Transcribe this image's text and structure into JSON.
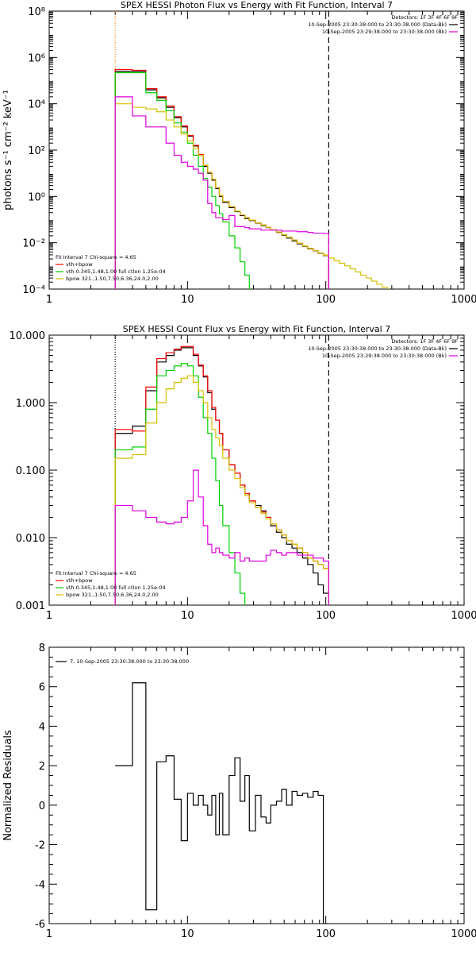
{
  "colors": {
    "background": "#ffffff",
    "axis": "#000000",
    "data": "#000000",
    "model_total": "#ff0000",
    "model_vth": "#00d000",
    "model_bpow": "#d8c000",
    "background_spectrum": "#e000e0",
    "threshold_line": "#ff8800"
  },
  "chart_data": [
    {
      "id": "photon-flux",
      "type": "line",
      "title": "SPEX HESSI Photon Flux vs Energy with Fit Function, Interval 7",
      "xlabel": "",
      "ylabel": "photons s⁻¹ cm⁻² keV⁻¹",
      "xscale": "log",
      "yscale": "log",
      "xlim": [
        1,
        1000
      ],
      "ylim": [
        0.0001,
        100000000
      ],
      "x_ticks": [
        1,
        10,
        100,
        1000
      ],
      "x_tick_labels": [
        "1",
        "10",
        "100",
        "1000"
      ],
      "y_ticks": [
        0.0001,
        0.01,
        1,
        100,
        10000,
        1000000,
        100000000
      ],
      "y_tick_labels": [
        "10⁻⁴",
        "10⁻²",
        "10⁰",
        "10²",
        "10⁴",
        "10⁶",
        "10⁸"
      ],
      "header_lines": [
        "Detectors: 1F 3F 4F 6F 9F"
      ],
      "legend_right": [
        {
          "label": "10-Sep-2005 23:30:38.000 to 23:30:38.000 (Data-Bk)",
          "color": "#000000"
        },
        {
          "label": "10-Sep-2005 23:29:38.000 to 23:30:38.000 (Bk)",
          "color": "#e000e0"
        }
      ],
      "fit_title": "Fit Interval 7   Chi-square = 4.65",
      "legend_left": [
        {
          "label": "vth+bpow",
          "color": "#ff0000"
        },
        {
          "label": "vth 0.345,1.48,1.00  full ctlon 1.25e-04",
          "color": "#00d000"
        },
        {
          "label": "bpow 321.,1.50,7.50,6.36,24.0,2.00",
          "color": "#d8c000"
        }
      ],
      "vlines": [
        {
          "x": 3,
          "style": "dotted",
          "color": "#ff8800"
        },
        {
          "x": 105,
          "style": "dashed",
          "color": "#000000"
        }
      ],
      "edges": [
        3,
        4,
        5,
        6,
        7,
        8,
        9,
        10,
        11,
        12,
        13,
        14,
        15,
        16,
        17,
        18,
        20,
        22,
        24,
        26,
        28,
        31,
        34,
        37,
        40,
        44,
        48,
        52,
        57,
        62,
        68,
        74,
        81,
        88,
        96,
        105,
        115,
        125,
        137,
        150,
        164,
        179,
        196,
        214,
        234,
        256,
        280
      ],
      "series": [
        {
          "name": "data",
          "color": "#000000",
          "values": [
            250000,
            250000,
            40000,
            18000,
            7000,
            2500,
            1000,
            400,
            150,
            60,
            20,
            10,
            5,
            2.2,
            1.0,
            0.55,
            0.33,
            0.22,
            0.15,
            0.11,
            0.09,
            0.07,
            0.055,
            0.045,
            0.036,
            0.028,
            0.021,
            0.016,
            0.012,
            0.009,
            0.007,
            0.0055,
            0.0045,
            0.0035,
            0.0028
          ]
        },
        {
          "name": "vth+bpow",
          "color": "#ff0000",
          "values": [
            300000,
            280000,
            45000,
            20000,
            8000,
            2800,
            1100,
            430,
            160,
            65,
            22,
            11,
            5.5,
            2.4,
            1.1,
            0.6,
            0.36,
            0.23,
            0.16,
            0.12,
            0.095,
            0.072,
            0.058,
            0.046,
            0.037,
            0.029,
            0.022,
            0.017,
            0.013,
            0.0095,
            0.0073,
            0.0057,
            0.0046,
            0.0036,
            0.0029
          ]
        },
        {
          "name": "vth",
          "color": "#00d000",
          "values": [
            220000,
            220000,
            30000,
            14000,
            5000,
            1500,
            600,
            200,
            60,
            20,
            6,
            2.5,
            1.0,
            0.4,
            0.18,
            0.08,
            0.02,
            0.006,
            0.0015,
            0.0004,
            8e-05
          ]
        },
        {
          "name": "bpow",
          "color": "#d8c000",
          "values": [
            10000,
            7000,
            6000,
            4500,
            2000,
            1000,
            500,
            250,
            120,
            60,
            22,
            11,
            5.5,
            2.4,
            1.1,
            0.6,
            0.36,
            0.23,
            0.16,
            0.12,
            0.095,
            0.072,
            0.058,
            0.046,
            0.037,
            0.029,
            0.022,
            0.017,
            0.013,
            0.0095,
            0.0073,
            0.0057,
            0.0046,
            0.0036,
            0.0029,
            0.0022,
            0.0017,
            0.0013,
            0.001,
            0.00075,
            0.00055,
            0.0004,
            0.0003,
            0.00022,
            0.00016,
            0.00012
          ]
        },
        {
          "name": "background",
          "color": "#e000e0",
          "values": [
            20000,
            3000,
            1000,
            1000,
            200,
            60,
            30,
            20,
            15,
            10,
            5,
            0.5,
            0.2,
            0.12,
            0.12,
            0.1,
            0.15,
            0.05,
            0.05,
            0.045,
            0.04,
            0.04,
            0.035,
            0.035,
            0.035,
            0.035,
            0.032,
            0.032,
            0.032,
            0.03,
            0.03,
            0.028,
            0.026,
            0.026,
            0.025
          ]
        }
      ]
    },
    {
      "id": "count-flux",
      "type": "line",
      "title": "SPEX HESSI Count Flux vs Energy with Fit Function, Interval 7",
      "xlabel": "",
      "ylabel": "",
      "xscale": "log",
      "yscale": "log",
      "xlim": [
        1,
        1000
      ],
      "ylim": [
        0.001,
        10
      ],
      "x_ticks": [
        1,
        10,
        100,
        1000
      ],
      "x_tick_labels": [
        "1",
        "10",
        "100",
        "1000"
      ],
      "y_ticks": [
        0.001,
        0.01,
        0.1,
        1,
        10
      ],
      "y_tick_labels": [
        "0.001",
        "0.010",
        "0.100",
        "1.000",
        "10.000"
      ],
      "header_lines": [
        "Detectors: 1F 3F 4F 6F 9F"
      ],
      "legend_right": [
        {
          "label": "10-Sep-2005 23:30:38.000 to 23:30:38.000 (Data-Bk)",
          "color": "#000000"
        },
        {
          "label": "10-Sep-2005 23:29:38.000 to 23:30:38.000 (Bk)",
          "color": "#e000e0"
        }
      ],
      "fit_title": "Fit Interval 7   Chi-square = 4.65",
      "legend_left": [
        {
          "label": "vth+bpow",
          "color": "#ff0000"
        },
        {
          "label": "vth 0.345,1.48,1.00  full ctlon 1.25e-04",
          "color": "#00d000"
        },
        {
          "label": "bpow 321.,1.50,7.50,6.36,24.0,2.00",
          "color": "#d8c000"
        }
      ],
      "vlines": [
        {
          "x": 3,
          "style": "dotted",
          "color": "#000000"
        },
        {
          "x": 105,
          "style": "dashed",
          "color": "#000000"
        }
      ],
      "edges": [
        3,
        4,
        5,
        6,
        7,
        8,
        9,
        10,
        11,
        12,
        13,
        14,
        15,
        16,
        17,
        18,
        20,
        22,
        24,
        26,
        28,
        31,
        34,
        37,
        40,
        44,
        48,
        52,
        57,
        62,
        68,
        74,
        81,
        88,
        96,
        105
      ],
      "series": [
        {
          "name": "data",
          "color": "#000000",
          "values": [
            0.35,
            0.45,
            1.5,
            4.0,
            5.0,
            6.0,
            6.5,
            6.5,
            5.0,
            3.5,
            2.4,
            1.4,
            0.8,
            0.55,
            0.35,
            0.2,
            0.12,
            0.09,
            0.06,
            0.045,
            0.035,
            0.03,
            0.025,
            0.02,
            0.015,
            0.012,
            0.01,
            0.008,
            0.007,
            0.006,
            0.005,
            0.004,
            0.003,
            0.002,
            0.0015
          ]
        },
        {
          "name": "vth+bpow",
          "color": "#ff0000",
          "values": [
            0.4,
            0.38,
            1.7,
            4.5,
            5.5,
            6.2,
            6.8,
            6.8,
            5.2,
            3.6,
            2.5,
            1.5,
            0.85,
            0.55,
            0.35,
            0.2,
            0.12,
            0.09,
            0.06,
            0.045,
            0.035,
            0.028,
            0.024,
            0.02,
            0.016,
            0.013,
            0.011,
            0.009,
            0.008,
            0.007,
            0.006,
            0.005,
            0.0045,
            0.004,
            0.0035
          ]
        },
        {
          "name": "vth",
          "color": "#00d000",
          "values": [
            0.2,
            0.22,
            0.8,
            2.5,
            3.0,
            3.5,
            3.8,
            3.5,
            2.5,
            1.2,
            0.6,
            0.35,
            0.15,
            0.07,
            0.03,
            0.015,
            0.006,
            0.003,
            0.0015,
            0.0008
          ]
        },
        {
          "name": "bpow",
          "color": "#d8c000",
          "values": [
            0.15,
            0.17,
            0.5,
            1.0,
            1.6,
            2.0,
            2.3,
            2.5,
            2.0,
            1.5,
            1.0,
            0.6,
            0.4,
            0.3,
            0.23,
            0.15,
            0.1,
            0.075,
            0.055,
            0.042,
            0.033,
            0.028,
            0.023,
            0.019,
            0.016,
            0.013,
            0.011,
            0.009,
            0.008,
            0.007,
            0.006,
            0.005,
            0.0045,
            0.004,
            0.0035
          ]
        },
        {
          "name": "background",
          "color": "#e000e0",
          "values": [
            0.03,
            0.025,
            0.02,
            0.017,
            0.016,
            0.017,
            0.02,
            0.035,
            0.1,
            0.04,
            0.015,
            0.008,
            0.006,
            0.007,
            0.006,
            0.0055,
            0.005,
            0.006,
            0.0045,
            0.005,
            0.0045,
            0.0045,
            0.0045,
            0.0055,
            0.0065,
            0.006,
            0.0055,
            0.006,
            0.006,
            0.0055,
            0.0055,
            0.0055,
            0.005,
            0.005,
            0.0045
          ]
        }
      ]
    },
    {
      "id": "residuals",
      "type": "line",
      "title": "",
      "xlabel": "",
      "ylabel": "Normalized Residuals",
      "xscale": "log",
      "yscale": "linear",
      "xlim": [
        1,
        1000
      ],
      "ylim": [
        -6,
        8
      ],
      "x_ticks": [
        1,
        10,
        100,
        1000
      ],
      "x_tick_labels": [
        "1",
        "10",
        "100",
        "1000"
      ],
      "y_ticks": [
        -6,
        -4,
        -2,
        0,
        2,
        4,
        6,
        8
      ],
      "y_tick_labels": [
        "-6",
        "-4",
        "-2",
        "0",
        "2",
        "4",
        "6",
        "8"
      ],
      "legend_left_top": [
        {
          "label": "7. 10-Sep-2005 23:30:38.000 to 23:30:38.000",
          "color": "#000000"
        }
      ],
      "edges": [
        3,
        4,
        5,
        6,
        7,
        8,
        9,
        10,
        11,
        12,
        13,
        14,
        15,
        16,
        17,
        18,
        20,
        22,
        24,
        26,
        28,
        31,
        34,
        37,
        40,
        44,
        48,
        52,
        57,
        62,
        68,
        74,
        81,
        88,
        96,
        105
      ],
      "series": [
        {
          "name": "residuals",
          "color": "#000000",
          "values": [
            2.0,
            6.2,
            -5.3,
            2.2,
            2.5,
            0.3,
            -1.8,
            0.6,
            0.0,
            0.5,
            0.0,
            -0.5,
            0.5,
            -1.5,
            0.6,
            -1.5,
            1.5,
            2.4,
            0.2,
            1.5,
            -1.3,
            0.5,
            -0.6,
            -0.9,
            0.0,
            0.2,
            0.8,
            0.0,
            0.7,
            0.5,
            0.6,
            0.4,
            0.7,
            0.5,
            -6.0
          ]
        }
      ]
    }
  ]
}
